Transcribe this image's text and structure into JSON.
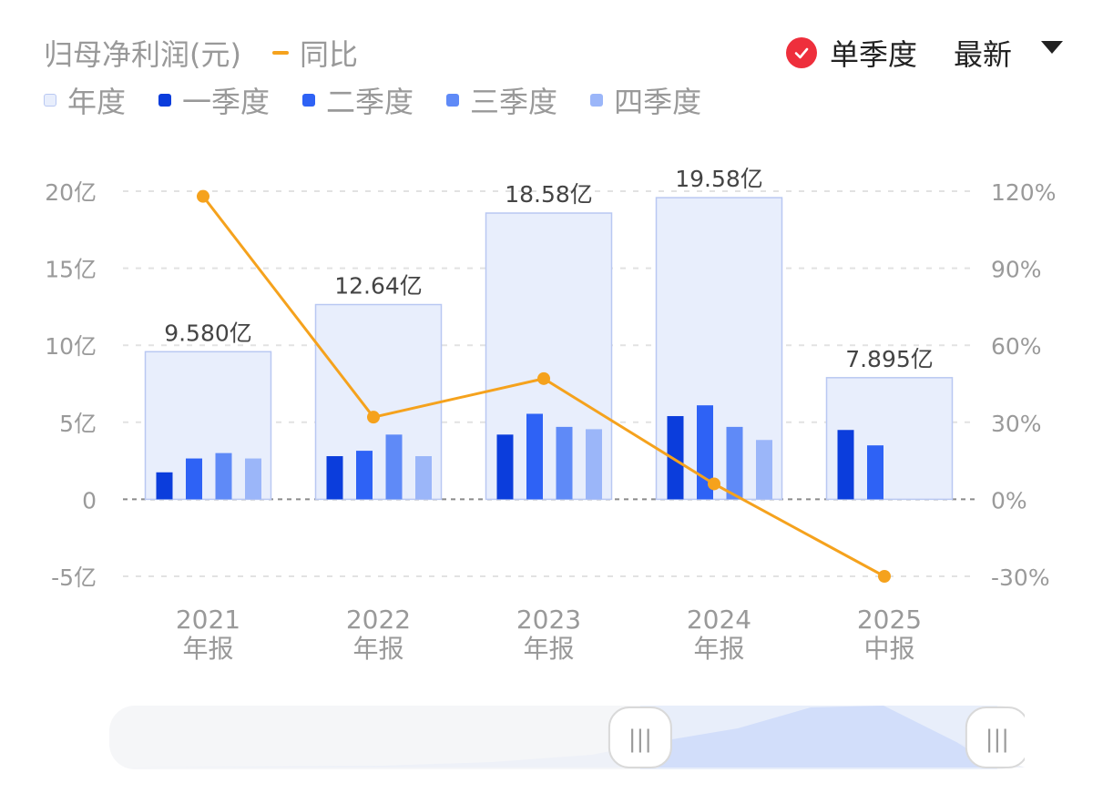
{
  "header": {
    "metric": "归母净利润(元)",
    "yoy_label": "同比",
    "mode_label": "单季度",
    "range_label": "最新"
  },
  "legend": [
    {
      "label": "年度",
      "color": "#e8eefc",
      "border": "#b9c8f2"
    },
    {
      "label": "一季度",
      "color": "#0b3ddc"
    },
    {
      "label": "二季度",
      "color": "#2e62f5"
    },
    {
      "label": "三季度",
      "color": "#5f8af7"
    },
    {
      "label": "四季度",
      "color": "#9bb6f9"
    }
  ],
  "chart_data": {
    "type": "bar",
    "categories": [
      {
        "year": "2021",
        "period": "年报"
      },
      {
        "year": "2022",
        "period": "年报"
      },
      {
        "year": "2023",
        "period": "年报"
      },
      {
        "year": "2024",
        "period": "年报"
      },
      {
        "year": "2025",
        "period": "中报"
      }
    ],
    "annual": [
      9.58,
      12.64,
      18.58,
      19.58,
      7.895
    ],
    "annual_labels": [
      "9.580亿",
      "12.64亿",
      "18.58亿",
      "19.58亿",
      "7.895亿"
    ],
    "quarters": [
      [
        1.75,
        2.65,
        3.0,
        2.65
      ],
      [
        2.8,
        3.15,
        4.2,
        2.8
      ],
      [
        4.2,
        5.55,
        4.7,
        4.55
      ],
      [
        5.4,
        6.1,
        4.7,
        3.85
      ],
      [
        4.5,
        3.5,
        null,
        null
      ]
    ],
    "yoy_series": {
      "values": [
        118,
        32,
        47,
        6,
        -30
      ]
    },
    "y_left": {
      "ticks": [
        20,
        15,
        10,
        5,
        0,
        -5
      ],
      "labels": [
        "20亿",
        "15亿",
        "10亿",
        "5亿",
        "0",
        "-5亿"
      ],
      "range": [
        -5,
        20
      ]
    },
    "y_right": {
      "ticks": [
        120,
        90,
        60,
        30,
        0,
        -30
      ],
      "labels": [
        "120%",
        "90%",
        "60%",
        "30%",
        "0%",
        "-30%"
      ],
      "range": [
        -30,
        120
      ]
    },
    "grid": true,
    "colors": {
      "annual_fill": "#e8eefc",
      "annual_border": "#b9c8f2",
      "q1": "#0b3ddc",
      "q2": "#2e62f5",
      "q3": "#5f8af7",
      "q4": "#9bb6f9",
      "yoy": "#f5a21d"
    }
  },
  "slider": {
    "range_start": 0.58,
    "range_end": 0.97,
    "handle_glyph": "|||"
  }
}
